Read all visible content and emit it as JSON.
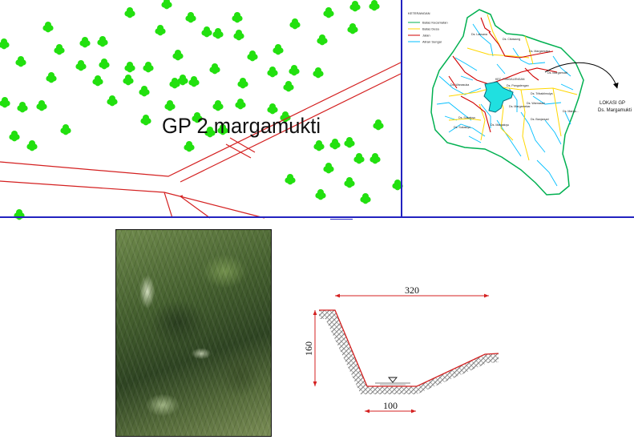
{
  "site_plan": {
    "label": "GP 2 margamukti"
  },
  "location_map": {
    "legend_title": "KETERANGAN",
    "legend": [
      {
        "label": "Batas Kecamatan",
        "color": "#00b050"
      },
      {
        "label": "Batas Desa",
        "color": "#ffd700"
      },
      {
        "label": "Jalan",
        "color": "#d00000"
      },
      {
        "label": "Aliran Sungai",
        "color": "#00bfff"
      }
    ],
    "villages": [
      {
        "name": "Ds. Laksana"
      },
      {
        "name": "Ds. Cikawung"
      },
      {
        "name": "Ds. Margamulya"
      },
      {
        "name": "Ds. Margamukti"
      },
      {
        "name": "Ds. Pangalengan"
      },
      {
        "name": "KEC. PANGALENGAN"
      },
      {
        "name": "Ds. Wanasuka"
      },
      {
        "name": "Ds. Tribaktimulya"
      },
      {
        "name": "Ds. Margamekar"
      },
      {
        "name": "Ds. Warnasari"
      },
      {
        "name": "Ds. Sukaluyu"
      },
      {
        "name": "Ds. Margaluyu"
      },
      {
        "name": "Ds. Banjarsari"
      },
      {
        "name": "Ds. Marga..."
      }
    ],
    "callout_line1": "LOKASI GP",
    "callout_line2": "Ds. Margamukti"
  },
  "cross_section": {
    "top_width": "320",
    "height": "160",
    "bottom_width": "100"
  },
  "colors": {
    "tree": "#22e00f",
    "road": "#d42020",
    "frame": "#2222c0"
  }
}
